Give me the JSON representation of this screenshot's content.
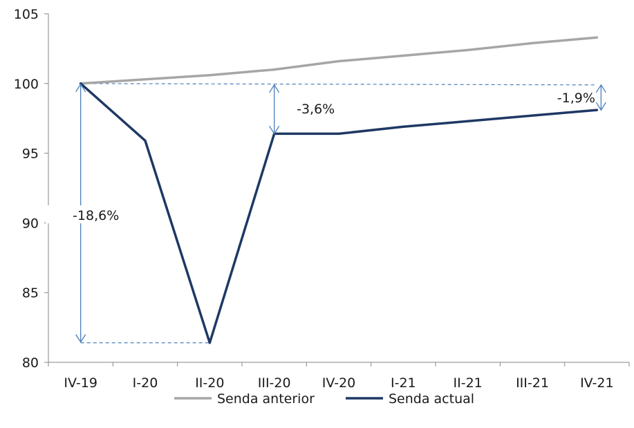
{
  "chart_data": {
    "type": "line",
    "categories": [
      "IV-19",
      "I-20",
      "II-20",
      "III-20",
      "IV-20",
      "I-21",
      "II-21",
      "III-21",
      "IV-21"
    ],
    "series": [
      {
        "name": "Senda anterior",
        "color": "#a6a6a6",
        "values": [
          100.0,
          100.3,
          100.6,
          101.0,
          101.6,
          102.0,
          102.4,
          102.9,
          103.3
        ]
      },
      {
        "name": "Senda actual",
        "color": "#1f3864",
        "values": [
          100.0,
          95.9,
          81.4,
          96.4,
          96.4,
          96.9,
          97.3,
          97.7,
          98.1
        ]
      }
    ],
    "ylim": [
      80,
      105
    ],
    "yticks": [
      "80",
      "85",
      "90",
      "95",
      "100",
      "105"
    ],
    "annotations": [
      {
        "text": "-18,6%",
        "from_category": 0,
        "y_from": 100.0,
        "y_to": 81.4
      },
      {
        "text": "-3,6%",
        "from_category": 3,
        "y_from": 99.9,
        "y_to": 96.4
      },
      {
        "text": "-1,9%",
        "from_category": 8,
        "y_from": 99.9,
        "y_to": 98.1
      }
    ],
    "annotation_color": "#4a7ebb",
    "legend_position": "bottom"
  }
}
